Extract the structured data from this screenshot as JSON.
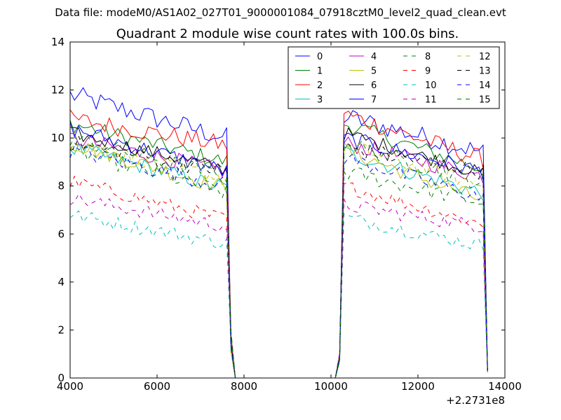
{
  "figure": {
    "supertitle": "Data file: modeM0/AS1A02_027T01_9000001084_07918cztM0_level2_quad_clean.evt"
  },
  "chart_data": {
    "type": "line",
    "title": "Quadrant 2 module wise count rates with 100.0s bins.",
    "xlabel": "",
    "ylabel": "",
    "x_offset_label": "+2.2731e8",
    "xlim": [
      4000,
      14000
    ],
    "ylim": [
      0,
      14
    ],
    "x_ticks": [
      4000,
      6000,
      8000,
      10000,
      12000,
      14000
    ],
    "x_tick_labels": [
      "4000",
      "6000",
      "8000",
      "10000",
      "12000",
      "14000"
    ],
    "y_ticks": [
      0,
      2,
      4,
      6,
      8,
      10,
      12,
      14
    ],
    "y_tick_labels": [
      "0",
      "2",
      "4",
      "6",
      "8",
      "10",
      "12",
      "14"
    ],
    "grid": false,
    "legend_position": "top-right",
    "legend_columns": 4,
    "segment_times": {
      "segment1": {
        "start": 4000,
        "end": 7600,
        "step": 100
      },
      "drop": [
        [
          7600,
          null
        ],
        [
          7700,
          1.5
        ],
        [
          7800,
          0
        ]
      ],
      "gap": [
        7800,
        10100
      ],
      "rise": [
        [
          10100,
          0
        ],
        [
          10200,
          0.8
        ],
        [
          10300,
          null
        ]
      ],
      "segment2": {
        "start": 10300,
        "end": 13500,
        "step": 100
      },
      "fall": [
        [
          13600,
          0.3
        ]
      ]
    },
    "series": [
      {
        "name": "0",
        "color": "#0000ff",
        "dash": "solid",
        "base1": 11.8,
        "end1": 10.0,
        "base2": 10.9,
        "end2": 9.4,
        "noise": 0.45
      },
      {
        "name": "1",
        "color": "#008000",
        "dash": "solid",
        "base1": 10.6,
        "end1": 9.0,
        "base2": 10.6,
        "end2": 8.7,
        "noise": 0.35
      },
      {
        "name": "2",
        "color": "#ff0000",
        "dash": "solid",
        "base1": 10.8,
        "end1": 9.7,
        "base2": 11.0,
        "end2": 9.1,
        "noise": 0.4
      },
      {
        "name": "3",
        "color": "#00bfbf",
        "dash": "solid",
        "base1": 9.6,
        "end1": 7.9,
        "base2": 9.4,
        "end2": 7.7,
        "noise": 0.35
      },
      {
        "name": "4",
        "color": "#bf00bf",
        "dash": "solid",
        "base1": 10.0,
        "end1": 8.6,
        "base2": 9.8,
        "end2": 8.4,
        "noise": 0.35
      },
      {
        "name": "5",
        "color": "#bfbf00",
        "dash": "solid",
        "base1": 9.8,
        "end1": 7.9,
        "base2": 9.5,
        "end2": 7.4,
        "noise": 0.35
      },
      {
        "name": "6",
        "color": "#000000",
        "dash": "solid",
        "base1": 10.2,
        "end1": 8.7,
        "base2": 10.2,
        "end2": 8.5,
        "noise": 0.3
      },
      {
        "name": "7",
        "color": "#0000ff",
        "dash": "solid",
        "base1": 10.4,
        "end1": 8.6,
        "base2": 10.0,
        "end2": 8.6,
        "noise": 0.35
      },
      {
        "name": "8",
        "color": "#008000",
        "dash": "dashed",
        "base1": 9.5,
        "end1": 7.7,
        "base2": 8.6,
        "end2": 7.3,
        "noise": 0.35
      },
      {
        "name": "9",
        "color": "#ff0000",
        "dash": "dashed",
        "base1": 8.2,
        "end1": 6.6,
        "base2": 8.0,
        "end2": 6.4,
        "noise": 0.3
      },
      {
        "name": "10",
        "color": "#00bfbf",
        "dash": "dashed",
        "base1": 6.8,
        "end1": 5.6,
        "base2": 6.7,
        "end2": 5.5,
        "noise": 0.3
      },
      {
        "name": "11",
        "color": "#bf00bf",
        "dash": "dashed",
        "base1": 7.5,
        "end1": 6.3,
        "base2": 7.2,
        "end2": 6.3,
        "noise": 0.3
      },
      {
        "name": "12",
        "color": "#bfbf00",
        "dash": "dashed",
        "base1": 9.8,
        "end1": 8.3,
        "base2": 9.7,
        "end2": 8.0,
        "noise": 0.35
      },
      {
        "name": "13",
        "color": "#000000",
        "dash": "dashed",
        "base1": 9.8,
        "end1": 8.6,
        "base2": 9.6,
        "end2": 8.6,
        "noise": 0.35
      },
      {
        "name": "14",
        "color": "#0000ff",
        "dash": "dashed",
        "base1": 9.5,
        "end1": 8.0,
        "base2": 9.2,
        "end2": 7.5,
        "noise": 0.35
      },
      {
        "name": "15",
        "color": "#008000",
        "dash": "dashed",
        "base1": 10.0,
        "end1": 8.4,
        "base2": 9.8,
        "end2": 8.1,
        "noise": 0.35
      }
    ]
  }
}
